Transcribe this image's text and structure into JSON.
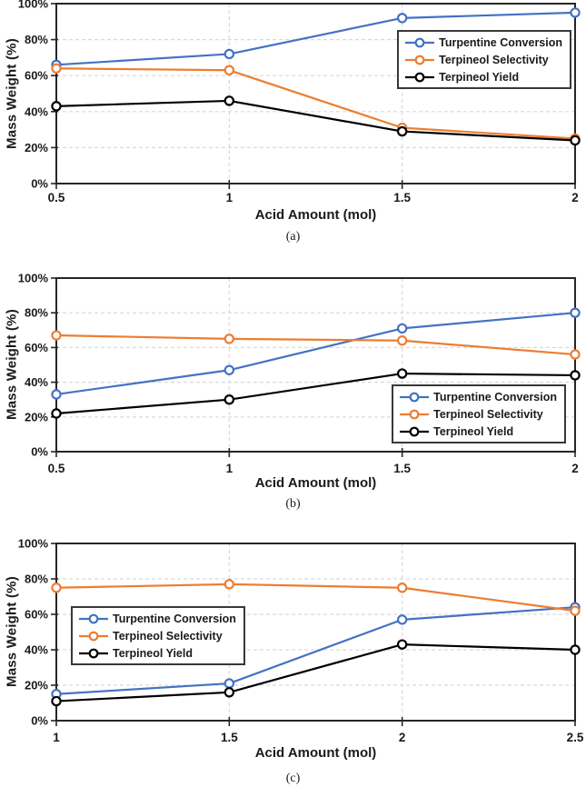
{
  "page": {
    "background": "#ffffff"
  },
  "colors": {
    "axis": "#262626",
    "grid": "#d9d9d9",
    "text": "#1a1a1a"
  },
  "chart_data": [
    {
      "type": "line",
      "caption": "(a)",
      "xlabel": "Acid Amount (mol)",
      "ylabel": "Mass Weight (%)",
      "x": [
        0.5,
        1,
        1.5,
        2
      ],
      "xtick_labels": [
        "0.5",
        "1",
        "1.5",
        "2"
      ],
      "ylim": [
        0,
        100
      ],
      "ytick_values": [
        0,
        20,
        40,
        60,
        80,
        100
      ],
      "ytick_labels": [
        "0%",
        "20%",
        "40%",
        "60%",
        "80%",
        "100%"
      ],
      "grid": "dashed",
      "legend_position": "top-right",
      "series": [
        {
          "name": "Turpentine Conversion",
          "color": "#4472C4",
          "marker": "open-circle",
          "values": [
            66,
            72,
            92,
            95
          ]
        },
        {
          "name": "Terpineol Selectivity",
          "color": "#ED7D31",
          "marker": "open-circle",
          "values": [
            64,
            63,
            31,
            25
          ]
        },
        {
          "name": "Terpineol Yield",
          "color": "#000000",
          "marker": "open-circle",
          "values": [
            43,
            46,
            29,
            24
          ]
        }
      ]
    },
    {
      "type": "line",
      "caption": "(b)",
      "xlabel": "Acid Amount (mol)",
      "ylabel": "Mass Weight (%)",
      "x": [
        0.5,
        1,
        1.5,
        2
      ],
      "xtick_labels": [
        "0.5",
        "1",
        "1.5",
        "2"
      ],
      "ylim": [
        0,
        100
      ],
      "ytick_values": [
        0,
        20,
        40,
        60,
        80,
        100
      ],
      "ytick_labels": [
        "0%",
        "20%",
        "40%",
        "60%",
        "80%",
        "100%"
      ],
      "grid": "dashed",
      "legend_position": "bottom-right",
      "series": [
        {
          "name": "Turpentine Conversion",
          "color": "#4472C4",
          "marker": "open-circle",
          "values": [
            33,
            47,
            71,
            80
          ]
        },
        {
          "name": "Terpineol Selectivity",
          "color": "#ED7D31",
          "marker": "open-circle",
          "values": [
            67,
            65,
            64,
            56
          ]
        },
        {
          "name": "Terpineol Yield",
          "color": "#000000",
          "marker": "open-circle",
          "values": [
            22,
            30,
            45,
            44
          ]
        }
      ]
    },
    {
      "type": "line",
      "caption": "(c)",
      "xlabel": "Acid Amount (mol)",
      "ylabel": "Mass Weight (%)",
      "x": [
        1,
        1.5,
        2,
        2.5
      ],
      "xtick_labels": [
        "1",
        "1.5",
        "2",
        "2.5"
      ],
      "ylim": [
        0,
        100
      ],
      "ytick_values": [
        0,
        20,
        40,
        60,
        80,
        100
      ],
      "ytick_labels": [
        "0%",
        "20%",
        "40%",
        "60%",
        "80%",
        "100%"
      ],
      "grid": "dashed",
      "legend_position": "middle-left",
      "series": [
        {
          "name": "Turpentine Conversion",
          "color": "#4472C4",
          "marker": "open-circle",
          "values": [
            15,
            21,
            57,
            64
          ]
        },
        {
          "name": "Terpineol Selectivity",
          "color": "#ED7D31",
          "marker": "open-circle",
          "values": [
            75,
            77,
            75,
            62
          ]
        },
        {
          "name": "Terpineol Yield",
          "color": "#000000",
          "marker": "open-circle",
          "values": [
            11,
            16,
            43,
            40
          ]
        }
      ]
    }
  ]
}
